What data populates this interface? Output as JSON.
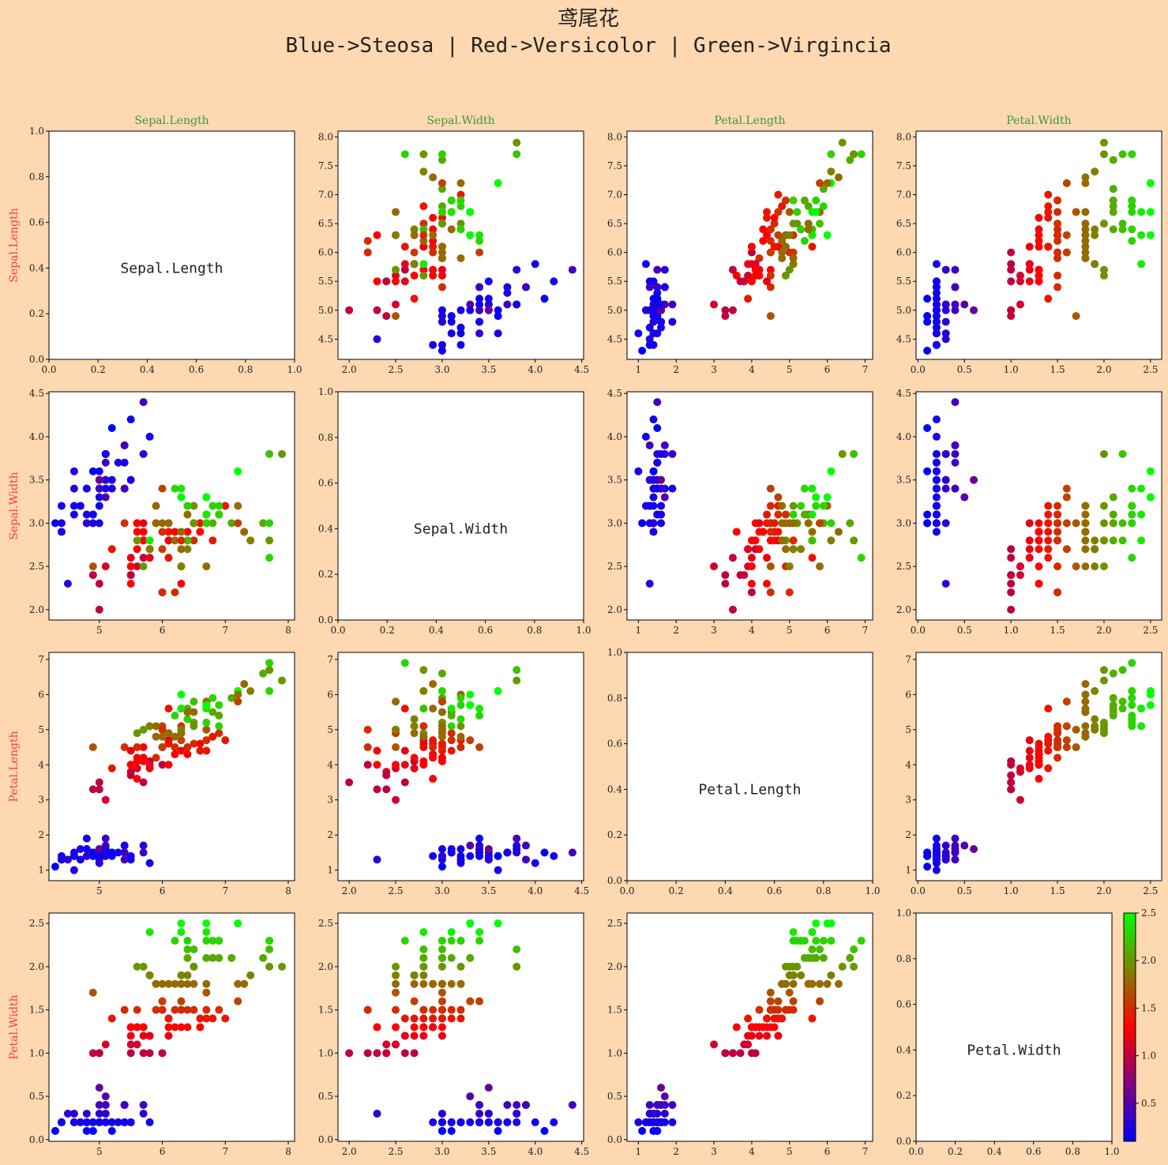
{
  "title": {
    "line1": "鸢尾花",
    "line2": "Blue->Steosa | Red->Versicolor | Green->Virgincia"
  },
  "chart_data": {
    "type": "scatter",
    "variables": [
      "Sepal.Length",
      "Sepal.Width",
      "Petal.Length",
      "Petal.Width"
    ],
    "column_titles": [
      "Sepal.Length",
      "Sepal.Width",
      "Petal.Length",
      "Petal.Width"
    ],
    "row_labels": [
      "Sepal.Length",
      "Sepal.Width",
      "Petal.Length",
      "Petal.Width"
    ],
    "diagonal_labels": [
      "Sepal.Length",
      "Sepal.Width",
      "Petal.Length",
      "Petal.Width"
    ],
    "column_title_color": "#3a9a3a",
    "row_label_color": "#ff3b3b",
    "background_color": "#fed8b1",
    "colormap": {
      "colors": [
        "#0000ff",
        "#ff0000",
        "#00ff00"
      ],
      "range": [
        0.1,
        2.5
      ],
      "ticks": [
        "0.5",
        "1.0",
        "1.5",
        "2.0",
        "2.5"
      ],
      "mapped_variable": "Petal.Width"
    },
    "axes": {
      "Sepal.Length": {
        "range": [
          4.2,
          8.1
        ],
        "ticks": [
          "5",
          "6",
          "7",
          "8"
        ]
      },
      "Sepal.Width": {
        "range": [
          1.88,
          4.52
        ],
        "ticks": [
          "2.0",
          "2.5",
          "3.0",
          "3.5",
          "4.0",
          "4.5"
        ]
      },
      "Petal.Length": {
        "range": [
          0.7,
          7.2
        ],
        "ticks": [
          "1",
          "2",
          "3",
          "4",
          "5",
          "6",
          "7"
        ]
      },
      "Petal.Width": {
        "range": [
          -0.02,
          2.62
        ],
        "ticks": [
          "0.0",
          "0.5",
          "1.0",
          "1.5",
          "2.0",
          "2.5"
        ]
      },
      "diagonal": {
        "range": [
          0,
          1
        ],
        "ticks": [
          "0.0",
          "0.2",
          "0.4",
          "0.6",
          "0.8",
          "1.0"
        ]
      }
    },
    "y_tick_overrides": {
      "Sepal.Length": {
        "range": [
          4.15,
          8.1
        ],
        "ticks": [
          "4.5",
          "5.0",
          "5.5",
          "6.0",
          "6.5",
          "7.0",
          "7.5",
          "8.0"
        ]
      }
    },
    "samples": [
      [
        5.1,
        3.5,
        1.4,
        0.2
      ],
      [
        4.9,
        3.0,
        1.4,
        0.2
      ],
      [
        4.7,
        3.2,
        1.3,
        0.2
      ],
      [
        4.6,
        3.1,
        1.5,
        0.2
      ],
      [
        5.0,
        3.6,
        1.4,
        0.2
      ],
      [
        5.4,
        3.9,
        1.7,
        0.4
      ],
      [
        4.6,
        3.4,
        1.4,
        0.3
      ],
      [
        5.0,
        3.4,
        1.5,
        0.2
      ],
      [
        4.4,
        2.9,
        1.4,
        0.2
      ],
      [
        4.9,
        3.1,
        1.5,
        0.1
      ],
      [
        5.4,
        3.7,
        1.5,
        0.2
      ],
      [
        4.8,
        3.4,
        1.6,
        0.2
      ],
      [
        4.8,
        3.0,
        1.4,
        0.1
      ],
      [
        4.3,
        3.0,
        1.1,
        0.1
      ],
      [
        5.8,
        4.0,
        1.2,
        0.2
      ],
      [
        5.7,
        4.4,
        1.5,
        0.4
      ],
      [
        5.4,
        3.9,
        1.3,
        0.4
      ],
      [
        5.1,
        3.5,
        1.4,
        0.3
      ],
      [
        5.7,
        3.8,
        1.7,
        0.3
      ],
      [
        5.1,
        3.8,
        1.5,
        0.3
      ],
      [
        5.4,
        3.4,
        1.7,
        0.2
      ],
      [
        5.1,
        3.7,
        1.5,
        0.4
      ],
      [
        4.6,
        3.6,
        1.0,
        0.2
      ],
      [
        5.1,
        3.3,
        1.7,
        0.5
      ],
      [
        4.8,
        3.4,
        1.9,
        0.2
      ],
      [
        5.0,
        3.0,
        1.6,
        0.2
      ],
      [
        5.0,
        3.4,
        1.6,
        0.4
      ],
      [
        5.2,
        3.5,
        1.5,
        0.2
      ],
      [
        5.2,
        3.4,
        1.4,
        0.2
      ],
      [
        4.7,
        3.2,
        1.6,
        0.2
      ],
      [
        4.8,
        3.1,
        1.6,
        0.2
      ],
      [
        5.4,
        3.4,
        1.5,
        0.4
      ],
      [
        5.2,
        4.1,
        1.5,
        0.1
      ],
      [
        5.5,
        4.2,
        1.4,
        0.2
      ],
      [
        4.9,
        3.1,
        1.5,
        0.2
      ],
      [
        5.0,
        3.2,
        1.2,
        0.2
      ],
      [
        5.5,
        3.5,
        1.3,
        0.2
      ],
      [
        4.9,
        3.6,
        1.4,
        0.1
      ],
      [
        4.4,
        3.0,
        1.3,
        0.2
      ],
      [
        5.1,
        3.4,
        1.5,
        0.2
      ],
      [
        5.0,
        3.5,
        1.3,
        0.3
      ],
      [
        4.5,
        2.3,
        1.3,
        0.3
      ],
      [
        4.4,
        3.2,
        1.3,
        0.2
      ],
      [
        5.0,
        3.5,
        1.6,
        0.6
      ],
      [
        5.1,
        3.8,
        1.9,
        0.4
      ],
      [
        4.8,
        3.0,
        1.4,
        0.3
      ],
      [
        5.1,
        3.8,
        1.6,
        0.2
      ],
      [
        4.6,
        3.2,
        1.4,
        0.2
      ],
      [
        5.3,
        3.7,
        1.5,
        0.2
      ],
      [
        5.0,
        3.3,
        1.4,
        0.2
      ],
      [
        7.0,
        3.2,
        4.7,
        1.4
      ],
      [
        6.4,
        3.2,
        4.5,
        1.5
      ],
      [
        6.9,
        3.1,
        4.9,
        1.5
      ],
      [
        5.5,
        2.3,
        4.0,
        1.3
      ],
      [
        6.5,
        2.8,
        4.6,
        1.5
      ],
      [
        5.7,
        2.8,
        4.5,
        1.3
      ],
      [
        6.3,
        3.3,
        4.7,
        1.6
      ],
      [
        4.9,
        2.4,
        3.3,
        1.0
      ],
      [
        6.6,
        2.9,
        4.6,
        1.3
      ],
      [
        5.2,
        2.7,
        3.9,
        1.4
      ],
      [
        5.0,
        2.0,
        3.5,
        1.0
      ],
      [
        5.9,
        3.0,
        4.2,
        1.5
      ],
      [
        6.0,
        2.2,
        4.0,
        1.0
      ],
      [
        6.1,
        2.9,
        4.7,
        1.4
      ],
      [
        5.6,
        2.9,
        3.6,
        1.3
      ],
      [
        6.7,
        3.1,
        4.4,
        1.4
      ],
      [
        5.6,
        3.0,
        4.5,
        1.5
      ],
      [
        5.8,
        2.7,
        4.1,
        1.0
      ],
      [
        6.2,
        2.2,
        4.5,
        1.5
      ],
      [
        5.6,
        2.5,
        3.9,
        1.1
      ],
      [
        5.9,
        3.2,
        4.8,
        1.8
      ],
      [
        6.1,
        2.8,
        4.0,
        1.3
      ],
      [
        6.3,
        2.5,
        4.9,
        1.5
      ],
      [
        6.1,
        2.8,
        4.7,
        1.2
      ],
      [
        6.4,
        2.9,
        4.3,
        1.3
      ],
      [
        6.6,
        3.0,
        4.4,
        1.4
      ],
      [
        6.8,
        2.8,
        4.8,
        1.4
      ],
      [
        6.7,
        3.0,
        5.0,
        1.7
      ],
      [
        6.0,
        2.9,
        4.5,
        1.5
      ],
      [
        5.7,
        2.6,
        3.5,
        1.0
      ],
      [
        5.5,
        2.4,
        3.8,
        1.1
      ],
      [
        5.5,
        2.4,
        3.7,
        1.0
      ],
      [
        5.8,
        2.7,
        3.9,
        1.2
      ],
      [
        6.0,
        2.7,
        5.1,
        1.6
      ],
      [
        5.4,
        3.0,
        4.5,
        1.5
      ],
      [
        6.0,
        3.4,
        4.5,
        1.6
      ],
      [
        6.7,
        3.1,
        4.7,
        1.5
      ],
      [
        6.3,
        2.3,
        4.4,
        1.3
      ],
      [
        5.6,
        3.0,
        4.1,
        1.3
      ],
      [
        5.5,
        2.5,
        4.0,
        1.3
      ],
      [
        5.5,
        2.6,
        4.4,
        1.2
      ],
      [
        6.1,
        3.0,
        4.6,
        1.4
      ],
      [
        5.8,
        2.6,
        4.0,
        1.2
      ],
      [
        5.0,
        2.3,
        3.3,
        1.0
      ],
      [
        5.6,
        2.7,
        4.2,
        1.3
      ],
      [
        5.7,
        3.0,
        4.2,
        1.2
      ],
      [
        5.7,
        2.9,
        4.2,
        1.3
      ],
      [
        6.2,
        2.9,
        4.3,
        1.3
      ],
      [
        5.1,
        2.5,
        3.0,
        1.1
      ],
      [
        5.7,
        2.8,
        4.1,
        1.3
      ],
      [
        6.3,
        3.3,
        6.0,
        2.5
      ],
      [
        5.8,
        2.7,
        5.1,
        1.9
      ],
      [
        7.1,
        3.0,
        5.9,
        2.1
      ],
      [
        6.3,
        2.9,
        5.6,
        1.8
      ],
      [
        6.5,
        3.0,
        5.8,
        2.2
      ],
      [
        7.6,
        3.0,
        6.6,
        2.1
      ],
      [
        4.9,
        2.5,
        4.5,
        1.7
      ],
      [
        7.3,
        2.9,
        6.3,
        1.8
      ],
      [
        6.7,
        2.5,
        5.8,
        1.8
      ],
      [
        7.2,
        3.6,
        6.1,
        2.5
      ],
      [
        6.5,
        3.2,
        5.1,
        2.0
      ],
      [
        6.4,
        2.7,
        5.3,
        1.9
      ],
      [
        6.8,
        3.0,
        5.5,
        2.1
      ],
      [
        5.7,
        2.5,
        5.0,
        2.0
      ],
      [
        5.8,
        2.8,
        5.1,
        2.4
      ],
      [
        6.4,
        3.2,
        5.3,
        2.3
      ],
      [
        6.5,
        3.0,
        5.5,
        1.8
      ],
      [
        7.7,
        3.8,
        6.7,
        2.2
      ],
      [
        7.7,
        2.6,
        6.9,
        2.3
      ],
      [
        6.0,
        2.2,
        5.0,
        1.5
      ],
      [
        6.9,
        3.2,
        5.7,
        2.3
      ],
      [
        5.6,
        2.8,
        4.9,
        2.0
      ],
      [
        7.7,
        2.8,
        6.7,
        2.0
      ],
      [
        6.3,
        2.7,
        4.9,
        1.8
      ],
      [
        6.7,
        3.3,
        5.7,
        2.1
      ],
      [
        7.2,
        3.2,
        6.0,
        1.8
      ],
      [
        6.2,
        2.8,
        4.8,
        1.8
      ],
      [
        6.1,
        3.0,
        4.9,
        1.8
      ],
      [
        6.4,
        2.8,
        5.6,
        2.1
      ],
      [
        7.2,
        3.0,
        5.8,
        1.6
      ],
      [
        7.4,
        2.8,
        6.1,
        1.9
      ],
      [
        7.9,
        3.8,
        6.4,
        2.0
      ],
      [
        6.4,
        2.8,
        5.6,
        2.2
      ],
      [
        6.3,
        2.8,
        5.1,
        1.5
      ],
      [
        6.1,
        2.6,
        5.6,
        1.4
      ],
      [
        7.7,
        3.0,
        6.1,
        2.3
      ],
      [
        6.3,
        3.4,
        5.6,
        2.4
      ],
      [
        6.4,
        3.1,
        5.5,
        1.8
      ],
      [
        6.0,
        3.0,
        4.8,
        1.8
      ],
      [
        6.9,
        3.1,
        5.4,
        2.1
      ],
      [
        6.7,
        3.1,
        5.6,
        2.4
      ],
      [
        6.9,
        3.1,
        5.1,
        2.3
      ],
      [
        5.8,
        2.7,
        5.1,
        1.9
      ],
      [
        6.8,
        3.2,
        5.9,
        2.3
      ],
      [
        6.7,
        3.3,
        5.7,
        2.5
      ],
      [
        6.7,
        3.0,
        5.2,
        2.3
      ],
      [
        6.3,
        2.5,
        5.0,
        1.9
      ],
      [
        6.5,
        3.0,
        5.2,
        2.0
      ],
      [
        6.2,
        3.4,
        5.4,
        2.3
      ],
      [
        5.9,
        3.0,
        5.1,
        1.8
      ]
    ]
  }
}
